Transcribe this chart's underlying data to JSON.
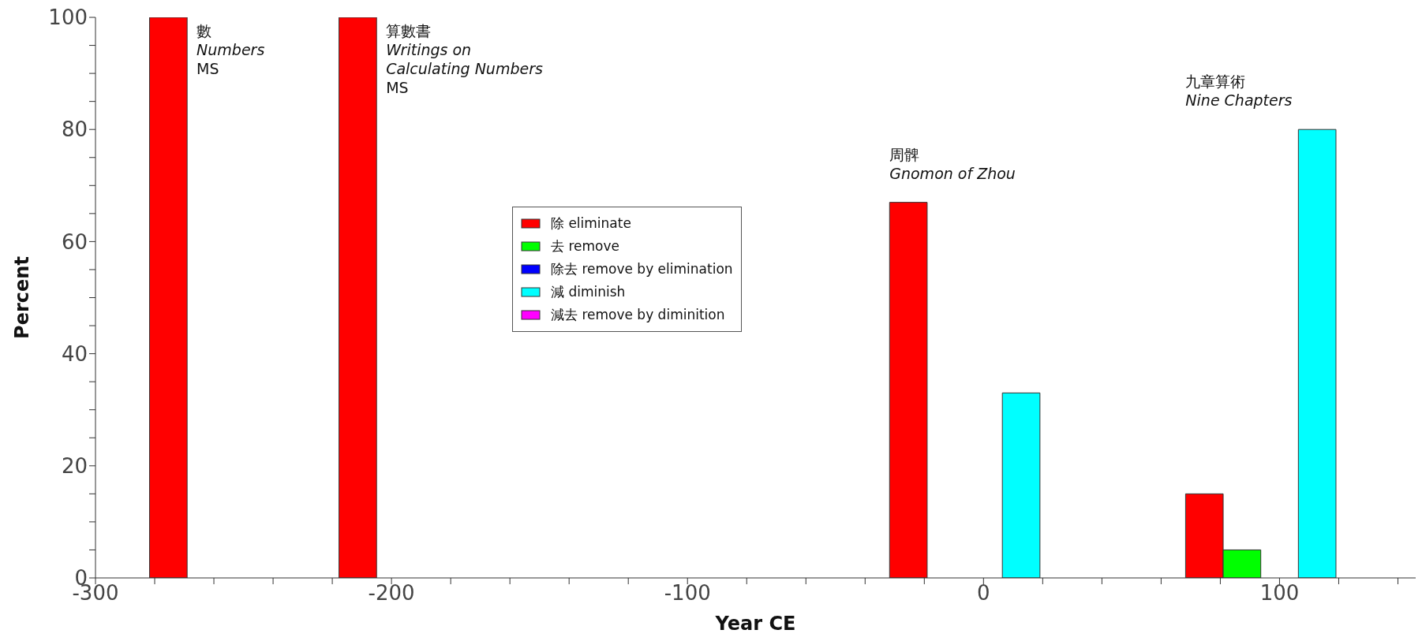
{
  "chart_data": {
    "type": "bar",
    "xlabel": "Year CE",
    "ylabel": "Percent",
    "x": [
      -250,
      -186,
      0,
      100
    ],
    "series": [
      {
        "name": "除 eliminate",
        "color": "#ff0000",
        "values": [
          100,
          100,
          67,
          15
        ]
      },
      {
        "name": "去 remove",
        "color": "#00ff00",
        "values": [
          0,
          0,
          0,
          5
        ]
      },
      {
        "name": "除去 remove by elimination",
        "color": "#0000ff",
        "values": [
          0,
          0,
          0,
          0
        ]
      },
      {
        "name": "減 diminish",
        "color": "#00ffff",
        "values": [
          0,
          0,
          33,
          80
        ]
      },
      {
        "name": "減去 remove by diminition",
        "color": "#ff00ff",
        "values": [
          0,
          0,
          0,
          0
        ]
      }
    ],
    "xlim": [
      -300,
      146
    ],
    "xticks": [
      -300,
      {
        "value": -280,
        "label": null
      },
      {
        "value": -260,
        "label": null
      },
      {
        "value": -240,
        "label": null
      },
      {
        "value": -220,
        "label": null
      },
      -200,
      {
        "value": -180,
        "label": null
      },
      {
        "value": -160,
        "label": null
      },
      {
        "value": -140,
        "label": null
      },
      {
        "value": -120,
        "label": null
      },
      -100,
      {
        "value": -80,
        "label": null
      },
      {
        "value": -60,
        "label": null
      },
      {
        "value": -40,
        "label": null
      },
      {
        "value": -20,
        "label": null
      },
      0,
      {
        "value": 20,
        "label": null
      },
      {
        "value": 40,
        "label": null
      },
      {
        "value": 60,
        "label": null
      },
      {
        "value": 80,
        "label": null
      },
      100,
      {
        "value": 120,
        "label": null
      },
      {
        "value": 140,
        "label": null
      }
    ],
    "ylim": [
      0,
      100
    ],
    "yticks": [
      0,
      {
        "value": 5,
        "label": null
      },
      {
        "value": 10,
        "label": null
      },
      {
        "value": 15,
        "label": null
      },
      20,
      {
        "value": 25,
        "label": null
      },
      {
        "value": 30,
        "label": null
      },
      {
        "value": 35,
        "label": null
      },
      40,
      {
        "value": 45,
        "label": null
      },
      {
        "value": 50,
        "label": null
      },
      {
        "value": 55,
        "label": null
      },
      60,
      {
        "value": 65,
        "label": null
      },
      {
        "value": 70,
        "label": null
      },
      {
        "value": 75,
        "label": null
      },
      80,
      {
        "value": 85,
        "label": null
      },
      {
        "value": 90,
        "label": null
      },
      {
        "value": 95,
        "label": null
      },
      100
    ],
    "grid": false,
    "legend": "center",
    "annotations": [
      "數\nNumbers\nMS",
      "算數書\nWritings on Calculating Numbers\nMS",
      "周髀\nGnomon of Zhou",
      "九章算術\nNine Chapters"
    ]
  }
}
